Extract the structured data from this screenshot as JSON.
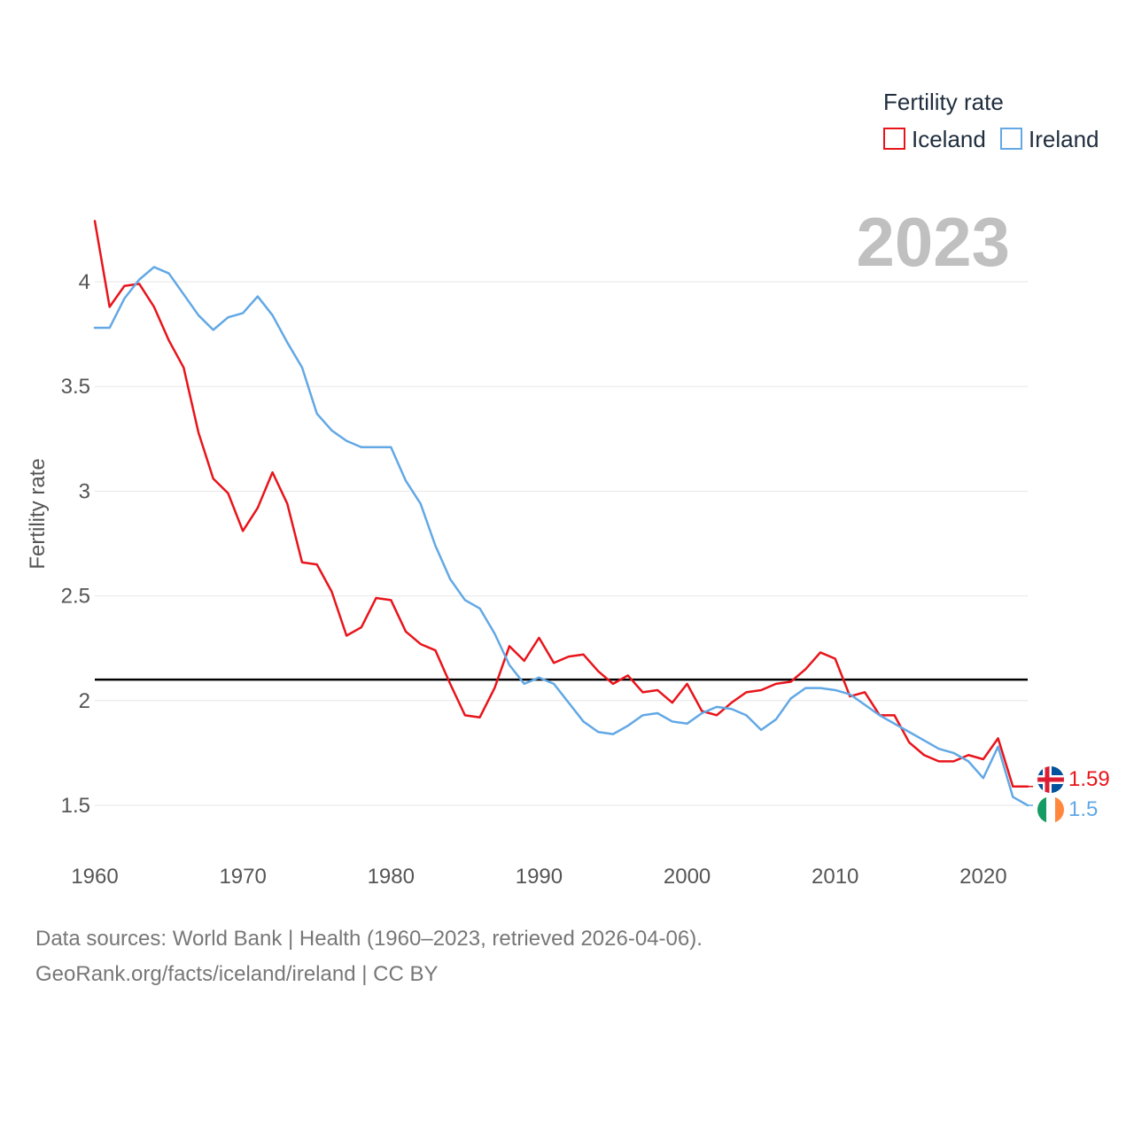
{
  "legend": {
    "title": "Fertility rate",
    "items": [
      {
        "label": "Iceland",
        "color": "#e8141b"
      },
      {
        "label": "Ireland",
        "color": "#62a8e5"
      }
    ]
  },
  "current_year": "2023",
  "footer": {
    "line1": "Data sources: World Bank | Health (1960–2023, retrieved 2026-04-06).",
    "line2": "GeoRank.org/facts/iceland/ireland | CC BY"
  },
  "flags": {
    "iceland": "iceland-flag-icon",
    "ireland": "ireland-flag-icon"
  },
  "chart_data": {
    "type": "line",
    "title": "Fertility rate",
    "xlabel": "",
    "ylabel": "Fertility rate",
    "xlim": [
      1960,
      2023
    ],
    "ylim": [
      1.35,
      4.3
    ],
    "grid": true,
    "legend_position": "top-right",
    "x_ticks": [
      1960,
      1970,
      1980,
      1990,
      2000,
      2010,
      2020
    ],
    "x_tick_labels": [
      "1960",
      "1970",
      "1980",
      "1990",
      "2000",
      "2010",
      "2020"
    ],
    "y_ticks": [
      1.5,
      2,
      2.5,
      3,
      3.5,
      4
    ],
    "y_tick_labels": [
      "1.5",
      "2",
      "2.5",
      "3",
      "3.5",
      "4"
    ],
    "reference_line": {
      "y": 2.1,
      "color": "#000000"
    },
    "x": [
      1960,
      1961,
      1962,
      1963,
      1964,
      1965,
      1966,
      1967,
      1968,
      1969,
      1970,
      1971,
      1972,
      1973,
      1974,
      1975,
      1976,
      1977,
      1978,
      1979,
      1980,
      1981,
      1982,
      1983,
      1984,
      1985,
      1986,
      1987,
      1988,
      1989,
      1990,
      1991,
      1992,
      1993,
      1994,
      1995,
      1996,
      1997,
      1998,
      1999,
      2000,
      2001,
      2002,
      2003,
      2004,
      2005,
      2006,
      2007,
      2008,
      2009,
      2010,
      2011,
      2012,
      2013,
      2014,
      2015,
      2016,
      2017,
      2018,
      2019,
      2020,
      2021,
      2022,
      2023
    ],
    "series": [
      {
        "name": "Iceland",
        "color": "#e8141b",
        "end_label": "1.59",
        "values": [
          4.29,
          3.88,
          3.98,
          3.99,
          3.88,
          3.72,
          3.59,
          3.28,
          3.06,
          2.99,
          2.81,
          2.92,
          3.09,
          2.94,
          2.66,
          2.65,
          2.52,
          2.31,
          2.35,
          2.49,
          2.48,
          2.33,
          2.27,
          2.24,
          2.08,
          1.93,
          1.92,
          2.06,
          2.26,
          2.19,
          2.3,
          2.18,
          2.21,
          2.22,
          2.14,
          2.08,
          2.12,
          2.04,
          2.05,
          1.99,
          2.08,
          1.95,
          1.93,
          1.99,
          2.04,
          2.05,
          2.08,
          2.09,
          2.15,
          2.23,
          2.2,
          2.02,
          2.04,
          1.93,
          1.93,
          1.8,
          1.74,
          1.71,
          1.71,
          1.74,
          1.72,
          1.82,
          1.59,
          1.59
        ]
      },
      {
        "name": "Ireland",
        "color": "#62a8e5",
        "end_label": "1.5",
        "values": [
          3.78,
          3.78,
          3.92,
          4.01,
          4.07,
          4.04,
          3.94,
          3.84,
          3.77,
          3.83,
          3.85,
          3.93,
          3.84,
          3.71,
          3.59,
          3.37,
          3.29,
          3.24,
          3.21,
          3.21,
          3.21,
          3.05,
          2.94,
          2.74,
          2.58,
          2.48,
          2.44,
          2.32,
          2.17,
          2.08,
          2.11,
          2.08,
          1.99,
          1.9,
          1.85,
          1.84,
          1.88,
          1.93,
          1.94,
          1.9,
          1.89,
          1.94,
          1.97,
          1.96,
          1.93,
          1.86,
          1.91,
          2.01,
          2.06,
          2.06,
          2.05,
          2.03,
          1.98,
          1.93,
          1.89,
          1.85,
          1.81,
          1.77,
          1.75,
          1.71,
          1.63,
          1.78,
          1.54,
          1.5
        ]
      }
    ]
  }
}
